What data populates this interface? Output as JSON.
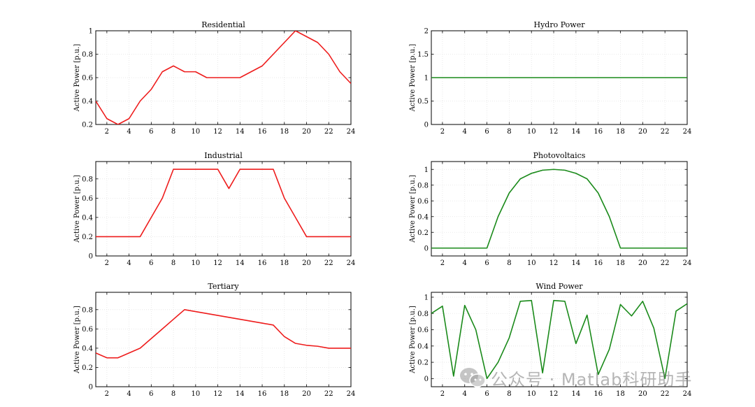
{
  "chart_data": [
    {
      "type": "line",
      "title": "Residential",
      "ylabel": "Active Power [p.u.]",
      "color": "#ee1c1c",
      "xlim": [
        1,
        24
      ],
      "ylim": [
        0.2,
        1.0
      ],
      "xticks": [
        2,
        4,
        6,
        8,
        10,
        12,
        14,
        16,
        18,
        20,
        22,
        24
      ],
      "yticks": [
        0.2,
        0.4,
        0.6,
        0.8,
        1.0
      ],
      "ytick_labels": [
        "0.2",
        "0.4",
        "0.6",
        "0.8",
        "1"
      ],
      "grid": true,
      "x": [
        1,
        2,
        3,
        4,
        5,
        6,
        7,
        8,
        9,
        10,
        11,
        12,
        13,
        14,
        15,
        16,
        17,
        18,
        19,
        20,
        21,
        22,
        23,
        24
      ],
      "y": [
        0.4,
        0.25,
        0.2,
        0.25,
        0.4,
        0.5,
        0.65,
        0.7,
        0.65,
        0.65,
        0.6,
        0.6,
        0.6,
        0.6,
        0.65,
        0.7,
        0.8,
        0.9,
        1.0,
        0.95,
        0.9,
        0.8,
        0.65,
        0.55
      ]
    },
    {
      "type": "line",
      "title": "Hydro Power",
      "ylabel": "Active Power [p.u.]",
      "color": "#1a8a1a",
      "xlim": [
        1,
        24
      ],
      "ylim": [
        0,
        2
      ],
      "xticks": [
        2,
        4,
        6,
        8,
        10,
        12,
        14,
        16,
        18,
        20,
        22,
        24
      ],
      "yticks": [
        0,
        0.5,
        1,
        1.5,
        2
      ],
      "ytick_labels": [
        "0",
        "0.5",
        "1",
        "1.5",
        "2"
      ],
      "grid": true,
      "x": [
        1,
        2,
        3,
        4,
        5,
        6,
        7,
        8,
        9,
        10,
        11,
        12,
        13,
        14,
        15,
        16,
        17,
        18,
        19,
        20,
        21,
        22,
        23,
        24
      ],
      "y": [
        1,
        1,
        1,
        1,
        1,
        1,
        1,
        1,
        1,
        1,
        1,
        1,
        1,
        1,
        1,
        1,
        1,
        1,
        1,
        1,
        1,
        1,
        1,
        1
      ]
    },
    {
      "type": "line",
      "title": "Industrial",
      "ylabel": "Active Power [p.u.]",
      "color": "#ee1c1c",
      "xlim": [
        1,
        24
      ],
      "ylim": [
        0,
        0.98
      ],
      "xticks": [
        2,
        4,
        6,
        8,
        10,
        12,
        14,
        16,
        18,
        20,
        22,
        24
      ],
      "yticks": [
        0,
        0.2,
        0.4,
        0.6,
        0.8
      ],
      "ytick_labels": [
        "0",
        "0.2",
        "0.4",
        "0.6",
        "0.8"
      ],
      "grid": true,
      "x": [
        1,
        2,
        3,
        4,
        5,
        6,
        7,
        8,
        9,
        10,
        11,
        12,
        13,
        14,
        15,
        16,
        17,
        18,
        19,
        20,
        21,
        22,
        23,
        24
      ],
      "y": [
        0.2,
        0.2,
        0.2,
        0.2,
        0.2,
        0.4,
        0.6,
        0.9,
        0.9,
        0.9,
        0.9,
        0.9,
        0.7,
        0.9,
        0.9,
        0.9,
        0.9,
        0.6,
        0.4,
        0.2,
        0.2,
        0.2,
        0.2,
        0.2
      ]
    },
    {
      "type": "line",
      "title": "Photovoltaics",
      "ylabel": "Active Power [p.u.]",
      "color": "#1a8a1a",
      "xlim": [
        1,
        24
      ],
      "ylim": [
        -0.1,
        1.1
      ],
      "xticks": [
        2,
        4,
        6,
        8,
        10,
        12,
        14,
        16,
        18,
        20,
        22,
        24
      ],
      "yticks": [
        0,
        0.2,
        0.4,
        0.6,
        0.8,
        1
      ],
      "ytick_labels": [
        "0",
        "0.2",
        "0.4",
        "0.6",
        "0.8",
        "1"
      ],
      "grid": true,
      "x": [
        1,
        2,
        3,
        4,
        5,
        6,
        7,
        8,
        9,
        10,
        11,
        12,
        13,
        14,
        15,
        16,
        17,
        18,
        19,
        20,
        21,
        22,
        23,
        24
      ],
      "y": [
        0,
        0,
        0,
        0,
        0,
        0,
        0.4,
        0.7,
        0.88,
        0.95,
        0.99,
        1.0,
        0.99,
        0.95,
        0.88,
        0.7,
        0.4,
        0,
        0,
        0,
        0,
        0,
        0,
        0
      ]
    },
    {
      "type": "line",
      "title": "Tertiary",
      "ylabel": "Active Power [p.u.]",
      "color": "#ee1c1c",
      "xlim": [
        1,
        24
      ],
      "ylim": [
        0,
        0.98
      ],
      "xticks": [
        2,
        4,
        6,
        8,
        10,
        12,
        14,
        16,
        18,
        20,
        22,
        24
      ],
      "yticks": [
        0,
        0.2,
        0.4,
        0.6,
        0.8
      ],
      "ytick_labels": [
        "0",
        "0.2",
        "0.4",
        "0.6",
        "0.8"
      ],
      "grid": true,
      "x": [
        1,
        2,
        3,
        4,
        5,
        6,
        7,
        8,
        9,
        10,
        11,
        12,
        13,
        14,
        15,
        16,
        17,
        18,
        19,
        20,
        21,
        22,
        23,
        24
      ],
      "y": [
        0.35,
        0.3,
        0.3,
        0.35,
        0.4,
        0.5,
        0.6,
        0.7,
        0.8,
        0.78,
        0.76,
        0.74,
        0.72,
        0.7,
        0.68,
        0.66,
        0.64,
        0.52,
        0.45,
        0.43,
        0.42,
        0.4,
        0.4,
        0.4
      ]
    },
    {
      "type": "line",
      "title": "Wind Power",
      "ylabel": "Active Power [p.u.]",
      "color": "#1a8a1a",
      "xlim": [
        1,
        24
      ],
      "ylim": [
        -0.1,
        1.06
      ],
      "xticks": [
        2,
        4,
        6,
        8,
        10,
        12,
        14,
        16,
        18,
        20,
        22,
        24
      ],
      "yticks": [
        0,
        0.2,
        0.4,
        0.6,
        0.8,
        1
      ],
      "ytick_labels": [
        "0",
        "0.2",
        "0.4",
        "0.6",
        "0.8",
        "1"
      ],
      "grid": true,
      "x": [
        1,
        2,
        3,
        4,
        5,
        6,
        7,
        8,
        9,
        10,
        11,
        12,
        13,
        14,
        15,
        16,
        17,
        18,
        19,
        20,
        21,
        22,
        23,
        24
      ],
      "y": [
        0.8,
        0.89,
        0.03,
        0.9,
        0.6,
        0.0,
        0.2,
        0.5,
        0.95,
        0.96,
        0.07,
        0.96,
        0.95,
        0.43,
        0.78,
        0.05,
        0.36,
        0.91,
        0.77,
        0.95,
        0.62,
        0.0,
        0.83,
        0.92
      ]
    }
  ],
  "watermark": {
    "text": "公众号 · Matlab科研助手",
    "icon": "wechat-icon"
  }
}
